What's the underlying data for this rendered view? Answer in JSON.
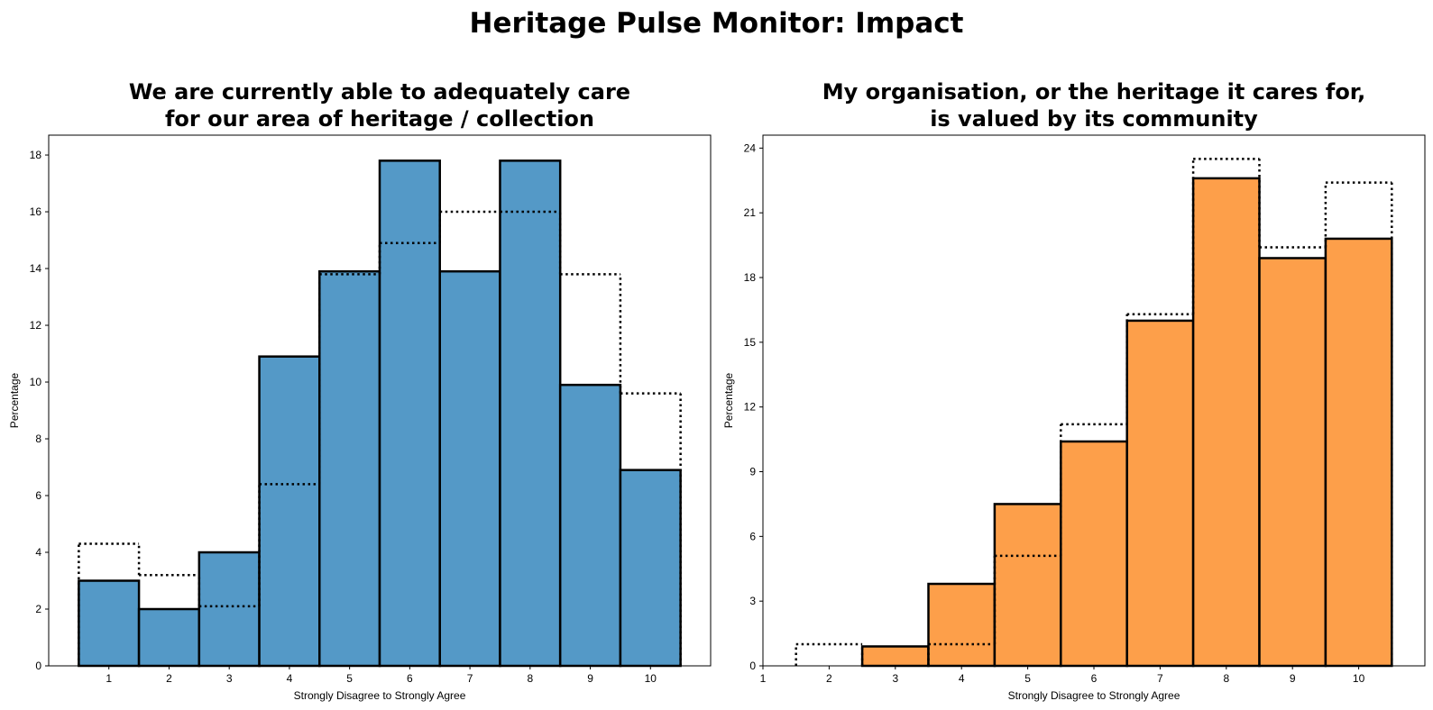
{
  "title": "Heritage Pulse Monitor: Impact",
  "chart_data": [
    {
      "type": "bar",
      "title_lines": [
        "We are currently able to adequately care",
        "for our area of heritage / collection"
      ],
      "xlabel": "Strongly Disagree to Strongly Agree",
      "ylabel": "Percentage",
      "categories": [
        1,
        2,
        3,
        4,
        5,
        6,
        7,
        8,
        9,
        10
      ],
      "x_ticks": [
        1,
        2,
        3,
        4,
        5,
        6,
        7,
        8,
        9,
        10
      ],
      "xlim": [
        0.0,
        11.0
      ],
      "y_ticks": [
        0,
        2,
        4,
        6,
        8,
        10,
        12,
        14,
        16,
        18
      ],
      "ylim": [
        0,
        18.7
      ],
      "grid": false,
      "color": "#5499c7",
      "series": [
        {
          "style": "bars",
          "values": [
            3.0,
            2.0,
            4.0,
            10.9,
            13.9,
            17.8,
            13.9,
            17.8,
            9.9,
            6.9
          ]
        },
        {
          "style": "dotted-outline",
          "values": [
            4.3,
            3.2,
            2.1,
            6.4,
            13.8,
            14.9,
            16.0,
            16.0,
            13.8,
            9.6
          ]
        }
      ]
    },
    {
      "type": "bar",
      "title_lines": [
        "My organisation, or the heritage it cares for,",
        "is valued by its community"
      ],
      "xlabel": "Strongly Disagree to Strongly Agree",
      "ylabel": "Percentage",
      "categories": [
        1,
        2,
        3,
        4,
        5,
        6,
        7,
        8,
        9,
        10
      ],
      "x_ticks": [
        1,
        2,
        3,
        4,
        5,
        6,
        7,
        8,
        9,
        10
      ],
      "xlim": [
        1.0,
        11.0
      ],
      "y_ticks": [
        0,
        3,
        6,
        9,
        12,
        15,
        18,
        21,
        24
      ],
      "ylim": [
        0,
        24.6
      ],
      "grid": false,
      "color": "#fd9f4a",
      "series": [
        {
          "style": "bars",
          "values": [
            0,
            0,
            0.9,
            3.8,
            7.5,
            10.4,
            16.0,
            22.6,
            18.9,
            19.8
          ]
        },
        {
          "style": "dotted-outline",
          "values": [
            0,
            1.0,
            0,
            1.0,
            5.1,
            11.2,
            16.3,
            23.5,
            19.4,
            22.4
          ]
        }
      ]
    }
  ]
}
